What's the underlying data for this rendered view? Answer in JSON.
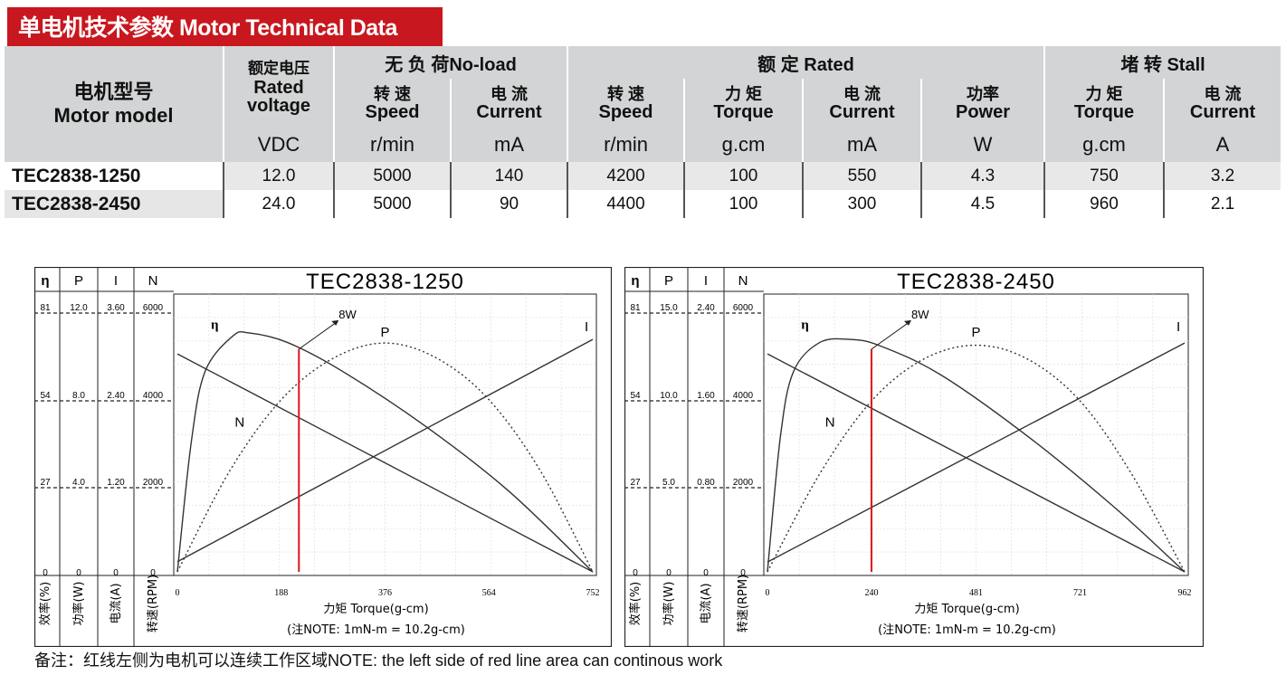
{
  "title": "单电机技术参数 Motor Technical Data",
  "table": {
    "model_header_zh": "电机型号",
    "model_header_en": "Motor model",
    "voltage_header_zh": "额定电压",
    "voltage_header_en_1": "Rated",
    "voltage_header_en_2": "voltage",
    "noload_group": "无 负 荷No-load",
    "rated_group": "额 定 Rated",
    "stall_group": "堵 转 Stall",
    "columns": [
      {
        "zh": "转 速",
        "en": "Speed",
        "unit": "r/min"
      },
      {
        "zh": "电 流",
        "en": "Current",
        "unit": "mA"
      },
      {
        "zh": "转 速",
        "en": "Speed",
        "unit": "r/min"
      },
      {
        "zh": "力 矩",
        "en": "Torque",
        "unit": "g.cm"
      },
      {
        "zh": "电 流",
        "en": "Current",
        "unit": "mA"
      },
      {
        "zh": "功率",
        "en": "Power",
        "unit": "W"
      },
      {
        "zh": "力 矩",
        "en": "Torque",
        "unit": "g.cm"
      },
      {
        "zh": "电 流",
        "en": "Current",
        "unit": "A"
      }
    ],
    "voltage_unit": "VDC",
    "rows": [
      {
        "model": "TEC2838-1250",
        "values": [
          "12.0",
          "5000",
          "140",
          "4200",
          "100",
          "550",
          "4.3",
          "750",
          "3.2"
        ]
      },
      {
        "model": "TEC2838-2450",
        "values": [
          "24.0",
          "5000",
          "90",
          "4400",
          "100",
          "300",
          "4.5",
          "960",
          "2.1"
        ]
      }
    ]
  },
  "charts": [
    {
      "title": "TEC2838-1250",
      "scale_headers": [
        "η",
        "P",
        "I",
        "N"
      ],
      "scale_values": [
        [
          "81",
          "12.0",
          "3.60",
          "6000"
        ],
        [
          "54",
          "8.0",
          "2.40",
          "4000"
        ],
        [
          "27",
          "4.0",
          "1.20",
          "2000"
        ],
        [
          "0",
          "0",
          "0",
          "0"
        ]
      ],
      "axis_labels": [
        "效率(%)",
        "功率(W)",
        "电流(A)",
        "转速(RPM)"
      ],
      "x_ticks": [
        "0",
        "188",
        "376",
        "564",
        "752"
      ],
      "xlabel": "力矩  Torque(g-cm)",
      "note": "(注NOTE: 1mN-m = 10.2g-cm)",
      "marker_label": "8W",
      "curve_labels": {
        "eta": "η",
        "p": "P",
        "i": "I",
        "n": "N"
      }
    },
    {
      "title": "TEC2838-2450",
      "scale_headers": [
        "η",
        "P",
        "I",
        "N"
      ],
      "scale_values": [
        [
          "81",
          "15.0",
          "2.40",
          "6000"
        ],
        [
          "54",
          "10.0",
          "1.60",
          "4000"
        ],
        [
          "27",
          "5.0",
          "0.80",
          "2000"
        ],
        [
          "0",
          "0",
          "0",
          "0"
        ]
      ],
      "axis_labels": [
        "效率(%)",
        "功率(W)",
        "电流(A)",
        "转速(RPM)"
      ],
      "x_ticks": [
        "0",
        "240",
        "481",
        "721",
        "962"
      ],
      "xlabel": "力矩  Torque(g-cm)",
      "note": "(注NOTE: 1mN-m = 10.2g-cm)",
      "marker_label": "8W",
      "curve_labels": {
        "eta": "η",
        "p": "P",
        "i": "I",
        "n": "N"
      }
    }
  ],
  "footnote": "备注：红线左侧为电机可以连续工作区域NOTE: the left side of red line area can continous work",
  "colors": {
    "title_bg": "#c8171e",
    "header_bg": "#d3d4d5",
    "marker": "#e0141b"
  },
  "chart_data": [
    {
      "type": "line",
      "title": "TEC2838-1250",
      "xlabel": "Torque(g-cm)",
      "xlim": [
        0,
        752
      ],
      "x_ticks": [
        0,
        188,
        376,
        564,
        752
      ],
      "y_axes": {
        "efficiency_pct": [
          0,
          81
        ],
        "power_w": [
          0,
          12.0
        ],
        "current_a": [
          0,
          3.6
        ],
        "speed_rpm": [
          0,
          6000
        ]
      },
      "series": [
        {
          "name": "N",
          "x": [
            0,
            752
          ],
          "y": [
            5000,
            0
          ],
          "axis": "speed_rpm"
        },
        {
          "name": "I",
          "x": [
            0,
            752
          ],
          "y": [
            0.14,
            3.2
          ],
          "axis": "current_a"
        },
        {
          "name": "P",
          "x": [
            0,
            94,
            188,
            282,
            376,
            470,
            564,
            658,
            752
          ],
          "y": [
            0,
            4.6,
            7.9,
            9.8,
            10.5,
            9.8,
            7.9,
            4.6,
            0
          ],
          "axis": "power_w"
        },
        {
          "name": "η",
          "x": [
            0,
            25,
            50,
            100,
            130,
            200,
            300,
            450,
            600,
            752
          ],
          "y": [
            0,
            40,
            62,
            73,
            74,
            71,
            62,
            45,
            25,
            0
          ],
          "axis": "efficiency_pct"
        }
      ],
      "rated_line_x": 220,
      "rated_line_label": "8W"
    },
    {
      "type": "line",
      "title": "TEC2838-2450",
      "xlabel": "Torque(g-cm)",
      "xlim": [
        0,
        962
      ],
      "x_ticks": [
        0,
        240,
        481,
        721,
        962
      ],
      "y_axes": {
        "efficiency_pct": [
          0,
          81
        ],
        "power_w": [
          0,
          15.0
        ],
        "current_a": [
          0,
          2.4
        ],
        "speed_rpm": [
          0,
          6000
        ]
      },
      "series": [
        {
          "name": "N",
          "x": [
            0,
            962
          ],
          "y": [
            5000,
            0
          ],
          "axis": "speed_rpm"
        },
        {
          "name": "I",
          "x": [
            0,
            962
          ],
          "y": [
            0.09,
            2.1
          ],
          "axis": "current_a"
        },
        {
          "name": "P",
          "x": [
            0,
            120,
            240,
            360,
            481,
            600,
            721,
            840,
            962
          ],
          "y": [
            0,
            5.6,
            9.8,
            12.2,
            13.0,
            12.2,
            9.8,
            5.6,
            0
          ],
          "axis": "power_w"
        },
        {
          "name": "η",
          "x": [
            0,
            30,
            60,
            120,
            190,
            260,
            400,
            600,
            800,
            962
          ],
          "y": [
            0,
            42,
            62,
            71,
            72,
            70,
            61,
            42,
            20,
            0
          ],
          "axis": "efficiency_pct"
        }
      ],
      "rated_line_x": 240,
      "rated_line_label": "8W"
    }
  ]
}
